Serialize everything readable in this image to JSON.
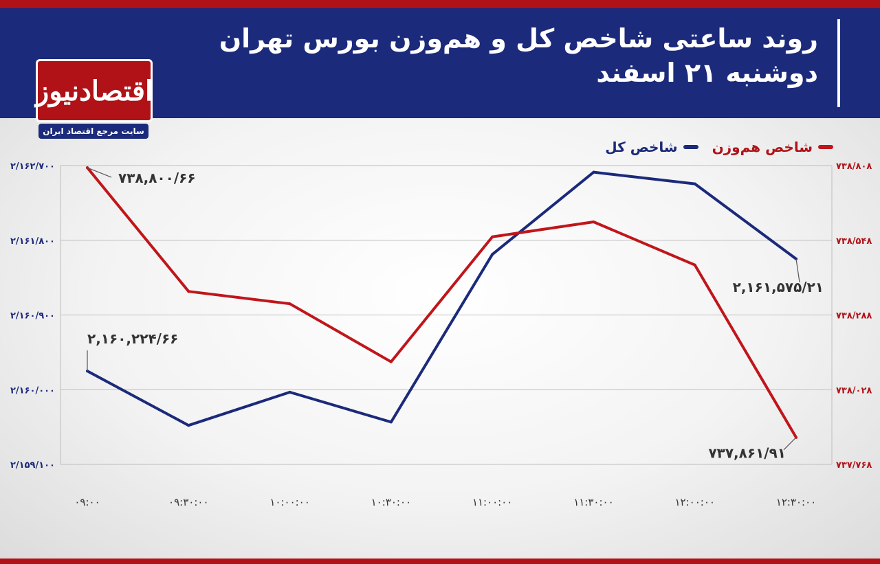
{
  "header": {
    "title": "روند ساعتی شاخص کل و هم‌وزن بورس تهران",
    "subtitle": "دوشنبه ۲۱ اسفند"
  },
  "logo": {
    "name": "اقتصادنیوز",
    "tagline": "سایت مرجع اقتصاد ایران"
  },
  "colors": {
    "header_bg": "#1b2a7a",
    "accent_red": "#b01217",
    "series_total": "#1b2a7a",
    "series_equal": "#c0161b"
  },
  "chart_data": {
    "type": "line",
    "title": "روند ساعتی شاخص کل و هم‌وزن بورس تهران",
    "subtitle": "دوشنبه ۲۱ اسفند",
    "categories": [
      "۰۹:۰۰",
      "۰۹:۳۰:۰۰",
      "۱۰:۰۰:۰۰",
      "۱۰:۳۰:۰۰",
      "۱۱:۰۰:۰۰",
      "۱۱:۳۰:۰۰",
      "۱۲:۰۰:۰۰",
      "۱۲:۳۰:۰۰"
    ],
    "legend_position": "top-right",
    "grid": true,
    "left_axis": {
      "ylim": [
        2159100,
        2162700
      ],
      "ticks": [
        "۲/۱۵۹/۱۰۰",
        "۲/۱۶۰/۰۰۰",
        "۲/۱۶۰/۹۰۰",
        "۲/۱۶۱/۸۰۰",
        "۲/۱۶۲/۷۰۰"
      ],
      "tick_values": [
        2159100,
        2160000,
        2160900,
        2161800,
        2162700
      ]
    },
    "right_axis": {
      "ylim": [
        737768,
        738808
      ],
      "ticks": [
        "۷۳۷/۷۶۸",
        "۷۳۸/۰۲۸",
        "۷۳۸/۲۸۸",
        "۷۳۸/۵۴۸",
        "۷۳۸/۸۰۸"
      ],
      "tick_values": [
        737768,
        738028,
        738288,
        738548,
        738808
      ]
    },
    "series": [
      {
        "name": "شاخص کل",
        "axis": "left",
        "color": "#1b2a7a",
        "values": [
          2160224.66,
          2159570,
          2159970,
          2159610,
          2161630,
          2162620,
          2162480,
          2161575.21
        ],
        "annotations": [
          {
            "index": 0,
            "label": "۲,۱۶۰,۲۲۴/۶۶"
          },
          {
            "index": 7,
            "label": "۲,۱۶۱,۵۷۵/۲۱"
          }
        ]
      },
      {
        "name": "شاخص هم‌وزن",
        "axis": "right",
        "color": "#c0161b",
        "values": [
          738800.66,
          738370,
          738327,
          738125,
          738560,
          738612,
          738462,
          737861.91
        ],
        "annotations": [
          {
            "index": 0,
            "label": "۷۳۸,۸۰۰/۶۶"
          },
          {
            "index": 7,
            "label": "۷۳۷,۸۶۱/۹۱"
          }
        ]
      }
    ]
  }
}
